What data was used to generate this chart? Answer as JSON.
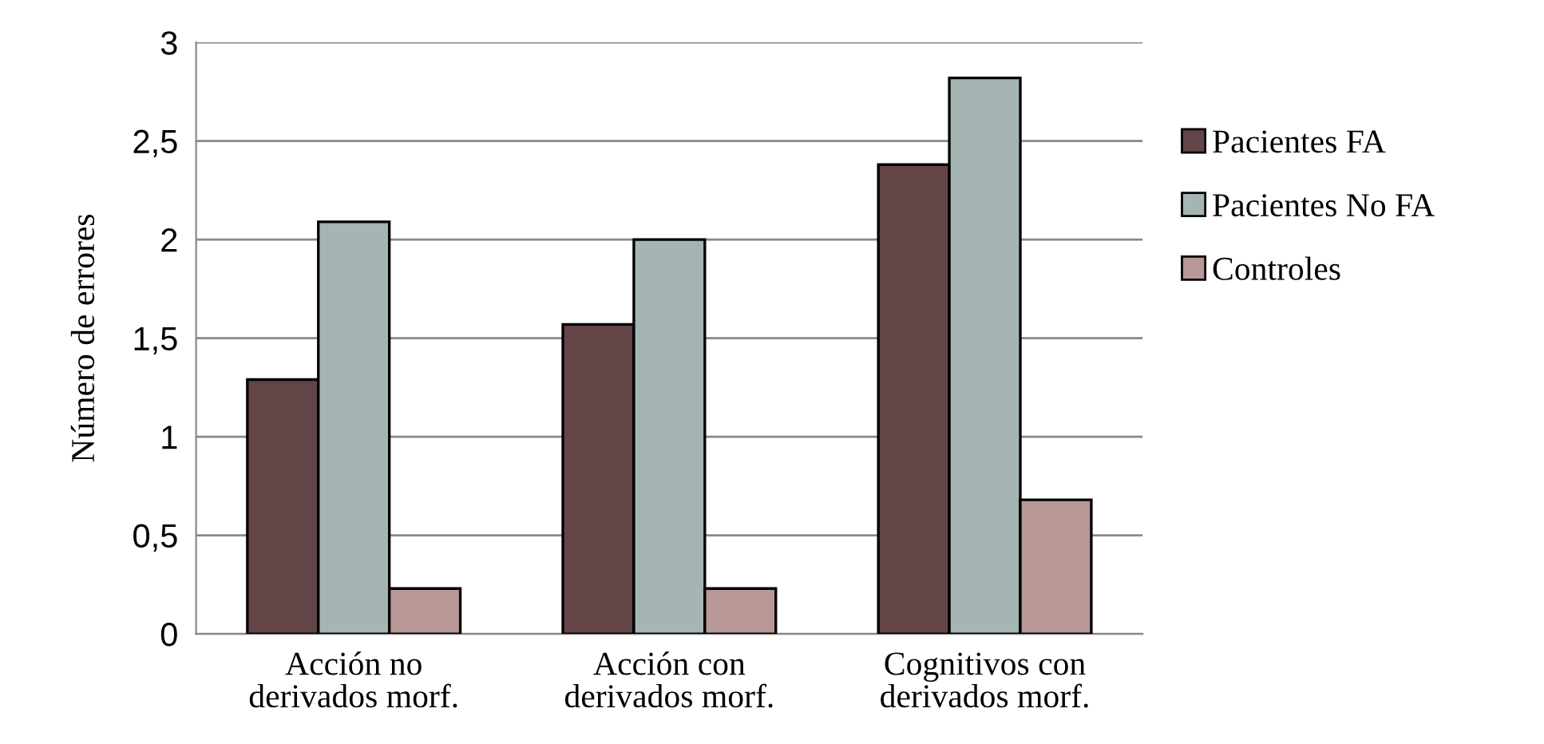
{
  "chart_data": {
    "type": "bar",
    "ylabel": "Número de errores",
    "categories": [
      "Acción no\nderivados morf.",
      "Acción con\nderivados morf.",
      "Cognitivos con\nderivados morf."
    ],
    "series": [
      {
        "name": "Pacientes FA",
        "color": "#634548",
        "values": [
          1.29,
          1.57,
          2.38
        ]
      },
      {
        "name": "Pacientes No FA",
        "color": "#a4b5b4",
        "values": [
          2.09,
          2.0,
          2.82
        ]
      },
      {
        "name": "Controles",
        "color": "#b89897",
        "values": [
          0.23,
          0.23,
          0.68
        ]
      }
    ],
    "ylim": [
      0,
      3
    ],
    "yticks": [
      0,
      {
        "value": 0.5,
        "label": "0,5"
      },
      1,
      {
        "value": 1.5,
        "label": "1,5"
      },
      2,
      {
        "value": 2.5,
        "label": "2,5"
      },
      3
    ],
    "grid": "y",
    "legend": "right"
  }
}
